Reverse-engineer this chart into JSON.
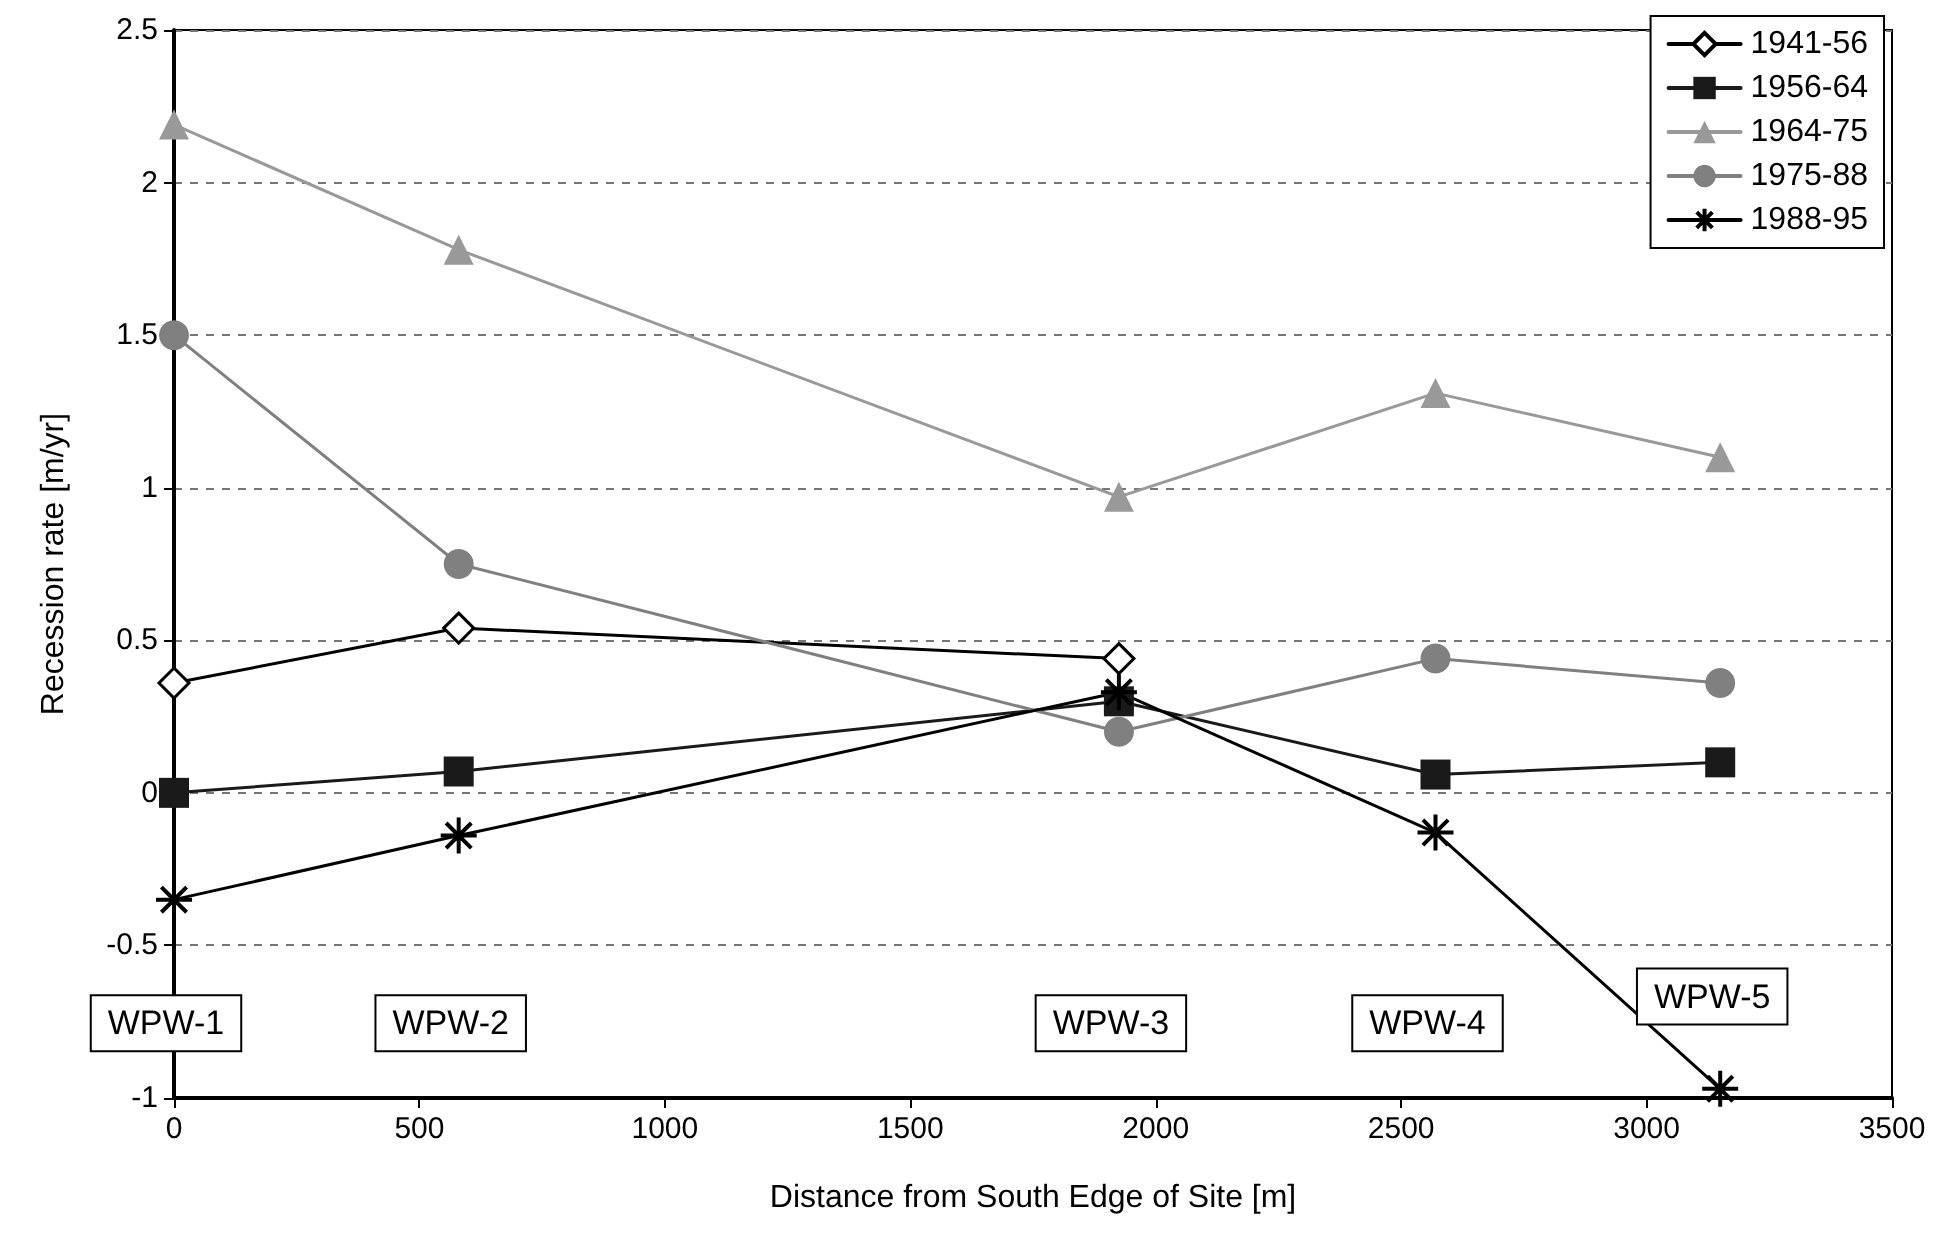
{
  "chart_data": {
    "type": "line",
    "xlabel": "Distance from South Edge of Site [m]",
    "ylabel": "Recession rate [m/yr]",
    "x": [
      0,
      580,
      1925,
      2570,
      3150
    ],
    "series": [
      {
        "name": "1941-56",
        "color": "#000000",
        "marker": "diamond",
        "values": [
          0.36,
          0.54,
          0.44,
          null,
          null
        ]
      },
      {
        "name": "1956-64",
        "color": "#1a1a1a",
        "marker": "square",
        "values": [
          0,
          0.07,
          0.3,
          0.06,
          0.1
        ]
      },
      {
        "name": "1964-75",
        "color": "#999999",
        "marker": "triangle",
        "values": [
          2.19,
          1.78,
          0.97,
          1.31,
          1.1
        ]
      },
      {
        "name": "1975-88",
        "color": "#808080",
        "marker": "circle",
        "values": [
          1.5,
          0.75,
          0.2,
          0.44,
          0.36
        ]
      },
      {
        "name": "1988-95",
        "color": "#000000",
        "marker": "cross",
        "values": [
          -0.35,
          -0.14,
          0.33,
          -0.13,
          -0.97
        ]
      }
    ],
    "annotations": [
      "WPW-1",
      "WPW-2",
      "WPW-3",
      "WPW-4",
      "WPW-5"
    ],
    "xlim": [
      0,
      3500
    ],
    "xticks": [
      0,
      500,
      1000,
      1500,
      2000,
      2500,
      3000,
      3500
    ],
    "ylim": [
      -1,
      2.5
    ],
    "yticks": [
      -1,
      -0.5,
      0,
      0.5,
      1,
      1.5,
      2,
      2.5
    ],
    "grid": "y",
    "legend": "top right",
    "line_style": "solid"
  }
}
